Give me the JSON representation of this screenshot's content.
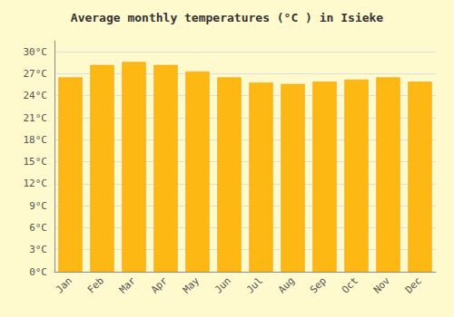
{
  "chart_data": {
    "type": "bar",
    "title": "Average monthly temperatures (°C ) in Isieke",
    "categories": [
      "Jan",
      "Feb",
      "Mar",
      "Apr",
      "May",
      "Jun",
      "Jul",
      "Aug",
      "Sep",
      "Oct",
      "Nov",
      "Dec"
    ],
    "values": [
      26.5,
      28.2,
      28.6,
      28.2,
      27.3,
      26.5,
      25.8,
      25.6,
      25.9,
      26.2,
      26.5,
      25.9
    ],
    "color": "#FDB813",
    "ylim": [
      0,
      31.5
    ],
    "yticks": [
      {
        "value": 0,
        "label": "0°C"
      },
      {
        "value": 3,
        "label": "3°C"
      },
      {
        "value": 6,
        "label": "6°C"
      },
      {
        "value": 9,
        "label": "9°C"
      },
      {
        "value": 12,
        "label": "12°C"
      },
      {
        "value": 15,
        "label": "15°C"
      },
      {
        "value": 18,
        "label": "18°C"
      },
      {
        "value": 21,
        "label": "21°C"
      },
      {
        "value": 24,
        "label": "24°C"
      },
      {
        "value": 27,
        "label": "27°C"
      },
      {
        "value": 30,
        "label": "30°C"
      }
    ],
    "grid": true
  }
}
